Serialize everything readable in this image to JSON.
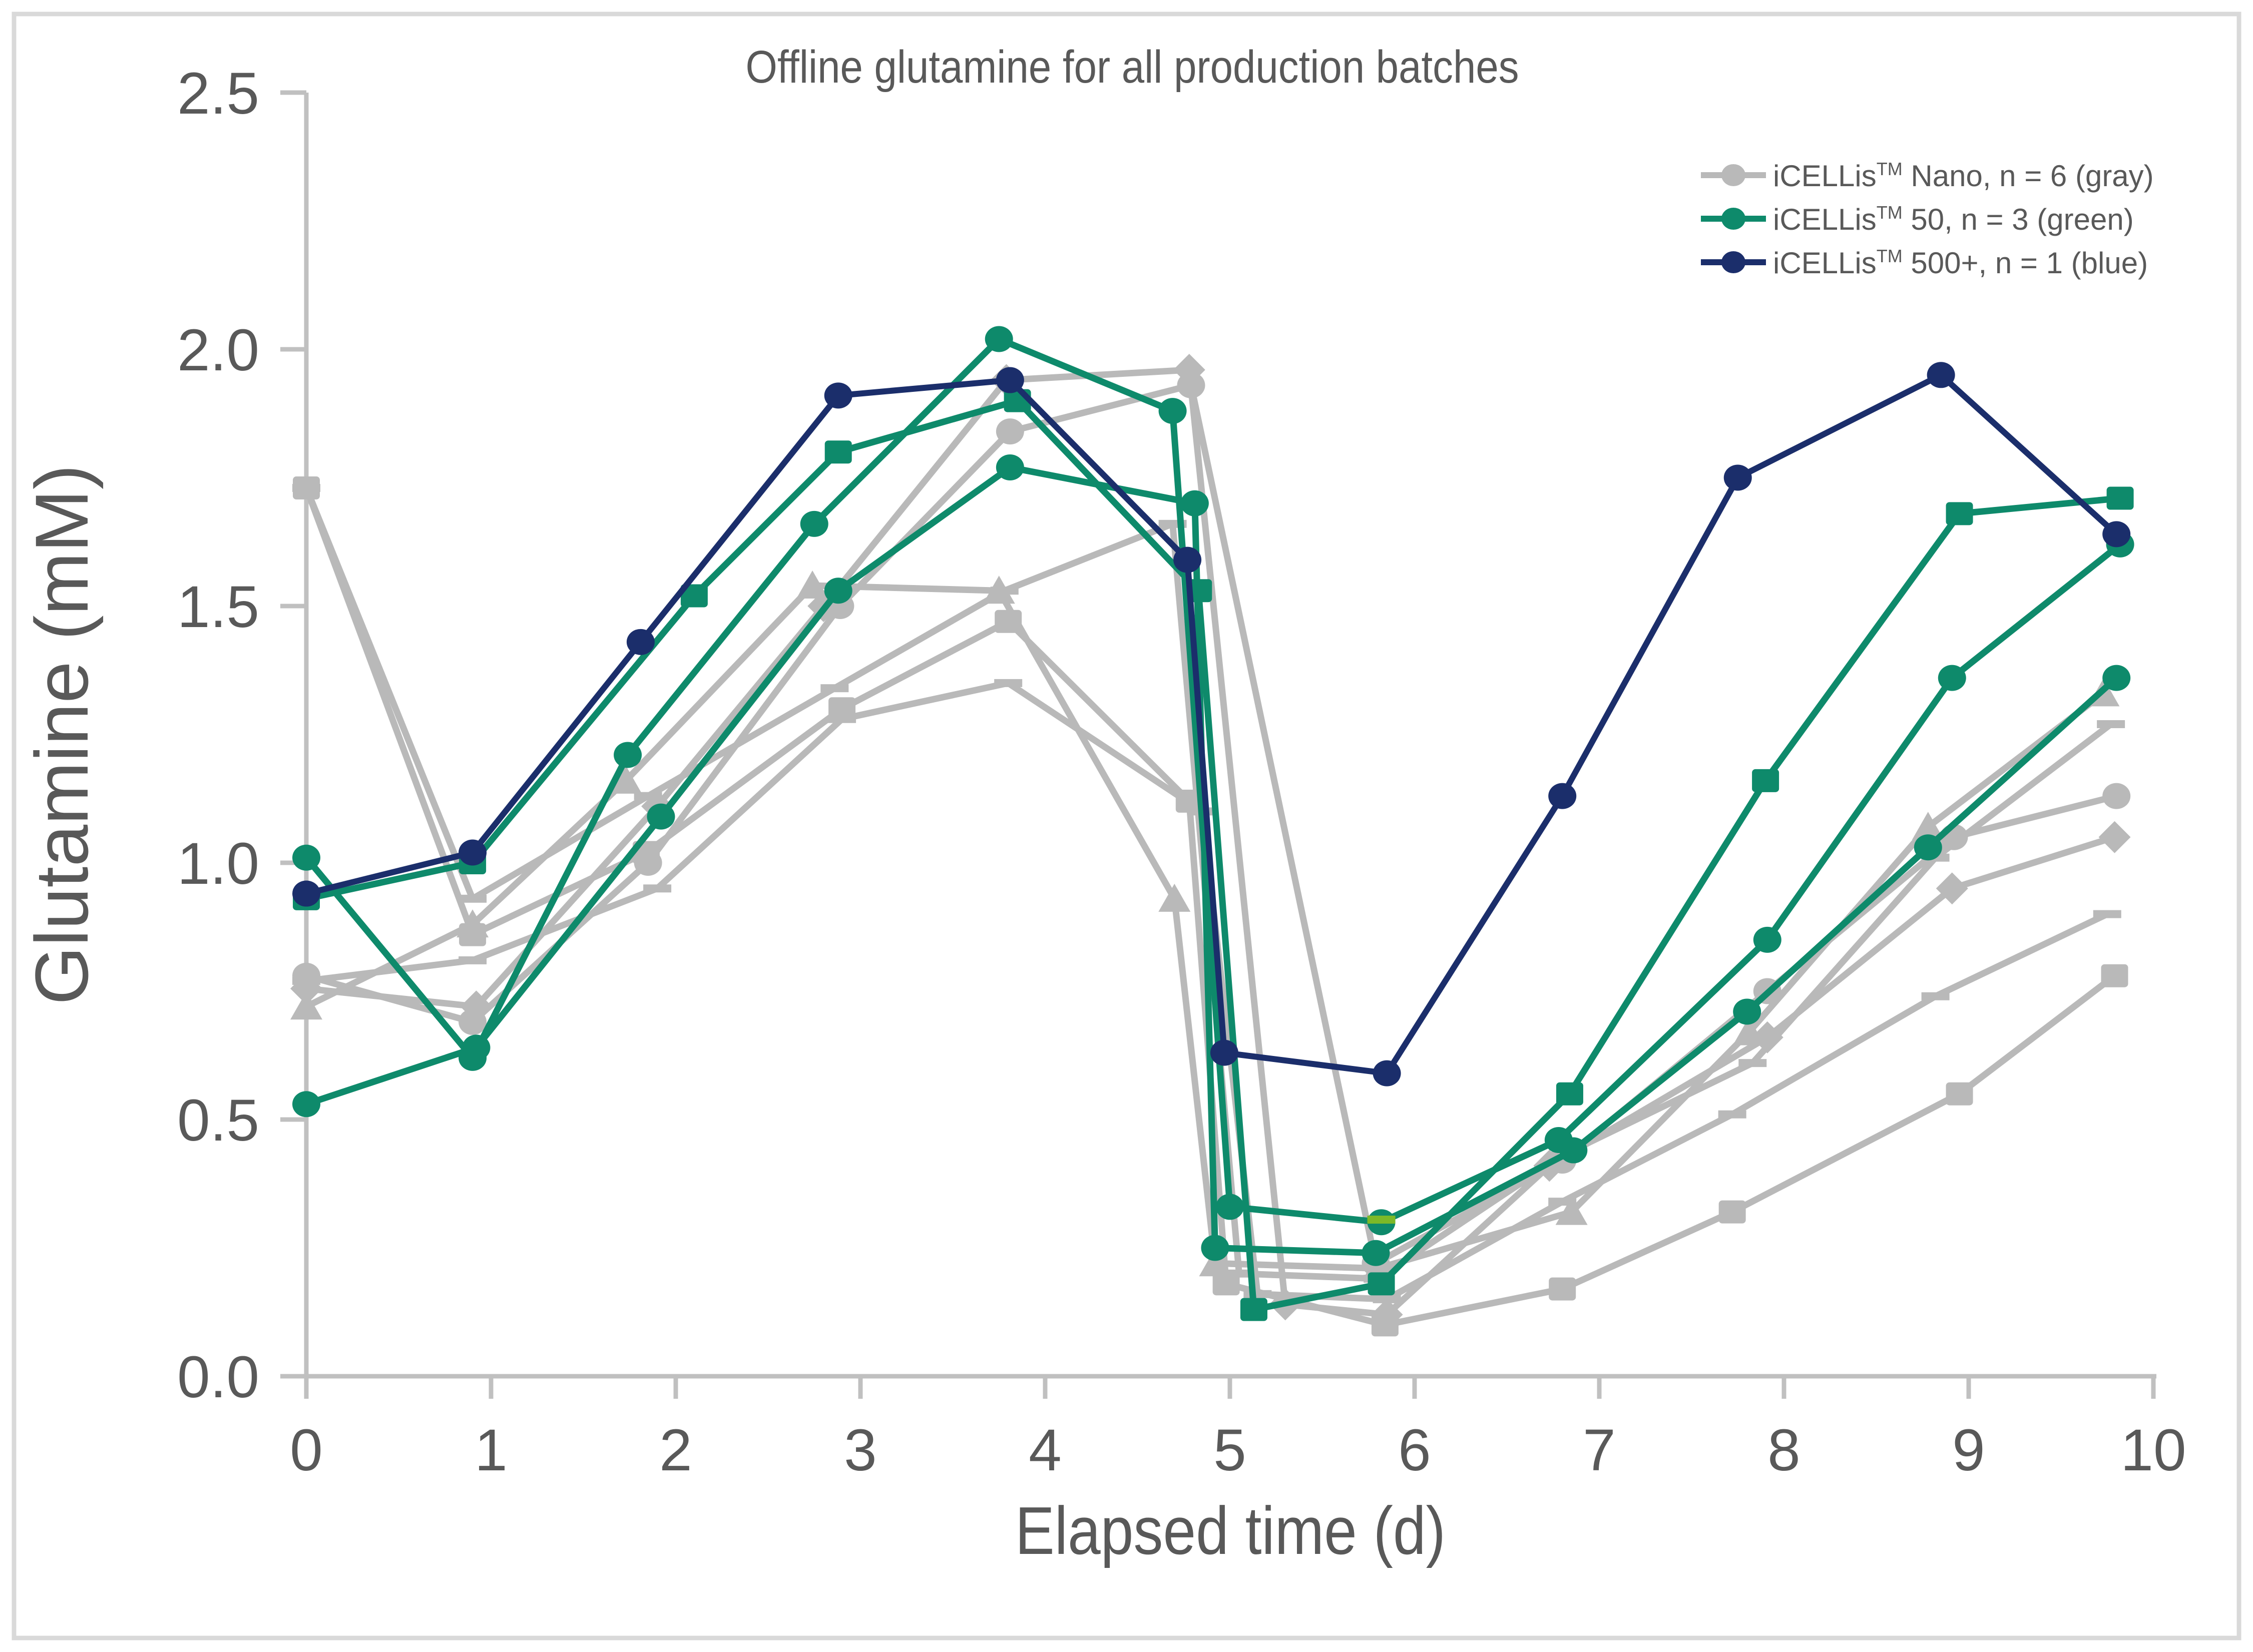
{
  "frame": {
    "background": "#ffffff",
    "border_color": "#d9d9d9"
  },
  "chart_data": {
    "type": "line",
    "title": "Offline glutamine for all production batches",
    "xlabel": "Elapsed time (d)",
    "ylabel": "Glutamine (mM)",
    "xlim": [
      0,
      10
    ],
    "ylim": [
      0,
      2.5
    ],
    "xticks": [
      "0",
      "1",
      "2",
      "3",
      "4",
      "5",
      "6",
      "7",
      "8",
      "9",
      "10"
    ],
    "yticks": [
      "0.0",
      "0.5",
      "1.0",
      "1.5",
      "2.0",
      "2.5"
    ],
    "grid": false,
    "legend_position": "top-right",
    "colors": {
      "gray": "#b9b9b9",
      "green": "#0e8a6b",
      "blue": "#1b2e6b",
      "lime": "#7cb928",
      "text": "#595959",
      "axis": "#c0c0c0"
    },
    "legend": [
      {
        "prefix": "iCELLis",
        "sup": "TM",
        "rest": " Nano, n = 6 (gray)",
        "color": "#b9b9b9"
      },
      {
        "prefix": "iCELLis",
        "sup": "TM",
        "rest": " 50, n = 3 (green)",
        "color": "#0e8a6b"
      },
      {
        "prefix": "iCELLis",
        "sup": "TM",
        "rest": " 500+, n = 1 (blue)",
        "color": "#1b2e6b"
      }
    ],
    "series": [
      {
        "name": "nano-batch-square",
        "group": "gray",
        "marker": "square",
        "points": [
          [
            0,
            1.73
          ],
          [
            0.9,
            0.86
          ],
          [
            1.84,
            1.02
          ],
          [
            2.9,
            1.3
          ],
          [
            3.8,
            1.47
          ],
          [
            4.78,
            1.12
          ],
          [
            4.98,
            0.18
          ],
          [
            5.84,
            0.1
          ],
          [
            6.8,
            0.17
          ],
          [
            7.72,
            0.32
          ],
          [
            8.95,
            0.55
          ],
          [
            9.79,
            0.78
          ]
        ]
      },
      {
        "name": "nano-batch-dash-a",
        "group": "gray",
        "marker": "dash",
        "points": [
          [
            0,
            1.73
          ],
          [
            0.9,
            0.93
          ],
          [
            1.85,
            1.13
          ],
          [
            2.86,
            1.34
          ],
          [
            3.78,
            1.53
          ],
          [
            4.69,
            1.66
          ],
          [
            5.05,
            0.2
          ],
          [
            5.8,
            0.19
          ],
          [
            6.8,
            0.43
          ],
          [
            7.83,
            0.61
          ],
          [
            8.82,
            1.01
          ],
          [
            9.77,
            1.27
          ]
        ]
      },
      {
        "name": "nano-batch-triangle",
        "group": "gray",
        "marker": "triangle",
        "points": [
          [
            0,
            0.72
          ],
          [
            0.9,
            0.88
          ],
          [
            1.73,
            1.16
          ],
          [
            2.74,
            1.54
          ],
          [
            3.75,
            1.53
          ],
          [
            4.7,
            0.93
          ],
          [
            4.92,
            0.22
          ],
          [
            5.8,
            0.21
          ],
          [
            6.85,
            0.32
          ],
          [
            7.81,
            0.67
          ],
          [
            8.78,
            1.07
          ],
          [
            9.73,
            1.33
          ]
        ]
      },
      {
        "name": "nano-batch-diamond",
        "group": "gray",
        "marker": "diamond",
        "points": [
          [
            0,
            0.755
          ],
          [
            0.92,
            0.72
          ],
          [
            1.9,
            1.11
          ],
          [
            2.8,
            1.5
          ],
          [
            3.79,
            1.94
          ],
          [
            4.78,
            1.96
          ],
          [
            5.3,
            0.14
          ],
          [
            5.85,
            0.12
          ],
          [
            6.73,
            0.41
          ],
          [
            7.91,
            0.66
          ],
          [
            8.91,
            0.95
          ],
          [
            9.79,
            1.05
          ]
        ]
      },
      {
        "name": "nano-batch-circle",
        "group": "gray",
        "marker": "circle",
        "points": [
          [
            0,
            0.78
          ],
          [
            0.9,
            0.69
          ],
          [
            1.85,
            1.0
          ],
          [
            2.89,
            1.5
          ],
          [
            3.81,
            1.84
          ],
          [
            4.79,
            1.93
          ],
          [
            5.79,
            0.22
          ],
          [
            6.8,
            0.42
          ],
          [
            7.91,
            0.75
          ],
          [
            8.92,
            1.05
          ],
          [
            9.8,
            1.13
          ]
        ]
      },
      {
        "name": "nano-batch-dash-b",
        "group": "gray",
        "marker": "dash",
        "points": [
          [
            0,
            0.77
          ],
          [
            0.9,
            0.81
          ],
          [
            1.9,
            0.95
          ],
          [
            2.9,
            1.28
          ],
          [
            3.8,
            1.35
          ],
          [
            4.85,
            1.1
          ],
          [
            5.15,
            0.16
          ],
          [
            5.85,
            0.15
          ],
          [
            6.8,
            0.34
          ],
          [
            7.72,
            0.51
          ],
          [
            8.82,
            0.74
          ],
          [
            9.75,
            0.9
          ]
        ]
      },
      {
        "name": "icellis50-batch-square",
        "group": "green",
        "marker": "square",
        "points": [
          [
            0,
            0.93
          ],
          [
            0.9,
            1.0
          ],
          [
            2.1,
            1.52
          ],
          [
            2.88,
            1.8
          ],
          [
            3.85,
            1.9
          ],
          [
            4.83,
            1.53
          ],
          [
            5.13,
            0.13
          ],
          [
            5.82,
            0.18
          ],
          [
            6.84,
            0.55
          ],
          [
            7.9,
            1.16
          ],
          [
            8.95,
            1.68
          ],
          [
            9.82,
            1.71
          ]
        ]
      },
      {
        "name": "icellis50-batch-circle-a",
        "group": "green",
        "marker": "circle",
        "points": [
          [
            0,
            1.01
          ],
          [
            0.9,
            0.62
          ],
          [
            1.74,
            1.21
          ],
          [
            2.75,
            1.66
          ],
          [
            3.75,
            2.02
          ],
          [
            4.69,
            1.88
          ],
          [
            5.0,
            0.33
          ],
          [
            5.82,
            0.3
          ],
          [
            6.78,
            0.46
          ],
          [
            7.91,
            0.85
          ],
          [
            8.91,
            1.36
          ],
          [
            9.82,
            1.62
          ]
        ]
      },
      {
        "name": "icellis50-batch-circle-b",
        "group": "green",
        "marker": "circle",
        "points": [
          [
            0,
            0.53
          ],
          [
            0.92,
            0.64
          ],
          [
            1.92,
            1.09
          ],
          [
            2.88,
            1.53
          ],
          [
            3.81,
            1.77
          ],
          [
            4.81,
            1.7
          ],
          [
            4.92,
            0.25
          ],
          [
            5.79,
            0.24
          ],
          [
            6.86,
            0.44
          ],
          [
            7.8,
            0.71
          ],
          [
            8.78,
            1.03
          ],
          [
            9.8,
            1.36
          ]
        ]
      },
      {
        "name": "icellis500-batch-circle",
        "group": "blue",
        "marker": "circle",
        "points": [
          [
            0,
            0.94
          ],
          [
            0.9,
            1.02
          ],
          [
            1.81,
            1.43
          ],
          [
            2.88,
            1.91
          ],
          [
            3.81,
            1.94
          ],
          [
            4.77,
            1.59
          ],
          [
            4.97,
            0.63
          ],
          [
            5.85,
            0.59
          ],
          [
            6.8,
            1.13
          ],
          [
            7.75,
            1.75
          ],
          [
            8.85,
            1.95
          ],
          [
            9.8,
            1.64
          ]
        ]
      }
    ],
    "extra_marker": {
      "x": 5.82,
      "y": 0.305,
      "shape": "dash",
      "color": "#7cb928"
    }
  }
}
